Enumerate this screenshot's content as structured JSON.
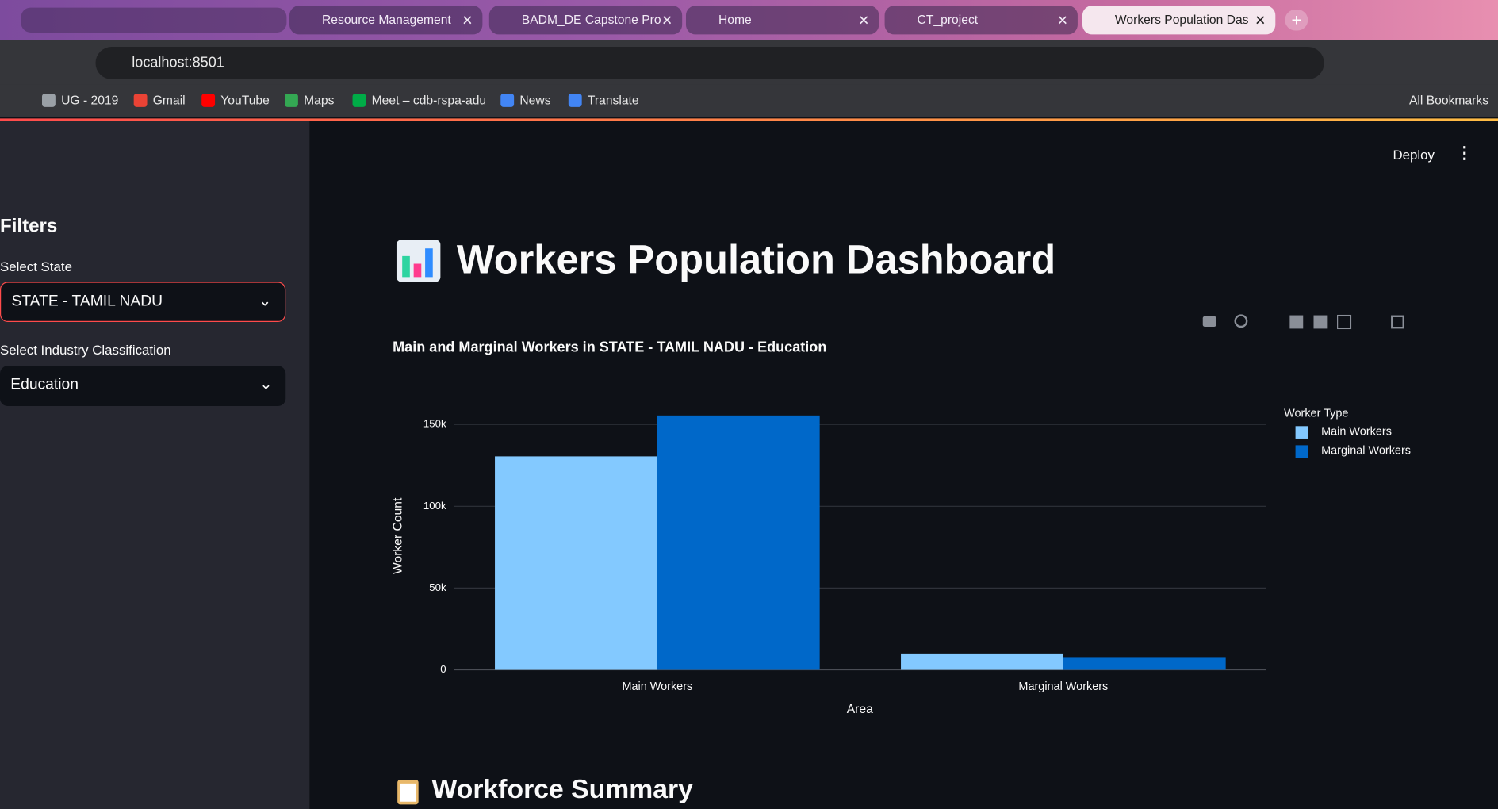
{
  "browser": {
    "tabs": [
      "Resource Management",
      "BADM_DE Capstone Pro",
      "Home",
      "CT_project",
      "Workers Population Das"
    ],
    "address": "localhost:8501",
    "bookmarks": [
      "UG - 2019",
      "Gmail",
      "YouTube",
      "Maps",
      "Meet – cdb-rspa-adu",
      "News",
      "Translate"
    ],
    "all_bookmarks": "All Bookmarks"
  },
  "sidebar": {
    "heading": "Filters",
    "state_label": "Select State",
    "state_value": "STATE - TAMIL NADU",
    "industry_label": "Select Industry Classification",
    "industry_value": "Education"
  },
  "header": {
    "deploy": "Deploy"
  },
  "title": "Workers Population Dashboard",
  "chart_data": {
    "type": "bar",
    "title": "Main and Marginal Workers in STATE - TAMIL NADU - Education",
    "x_label": "Area",
    "y_label": "Worker Count",
    "categories": [
      "Main Workers",
      "Marginal Workers"
    ],
    "legend_title": "Worker Type",
    "series": [
      {
        "name": "Main Workers",
        "color": "#83c9ff",
        "values": [
          130500,
          10000
        ]
      },
      {
        "name": "Marginal Workers",
        "color": "#0068c9",
        "values": [
          155500,
          7800
        ]
      }
    ],
    "ylim": [
      0,
      163000
    ],
    "yticks": [
      0,
      {
        "value": 50000,
        "label": "50k"
      },
      {
        "value": 100000,
        "label": "100k"
      },
      {
        "value": 150000,
        "label": "150k"
      }
    ],
    "grid": true
  },
  "summary_heading": "Workforce Summary"
}
